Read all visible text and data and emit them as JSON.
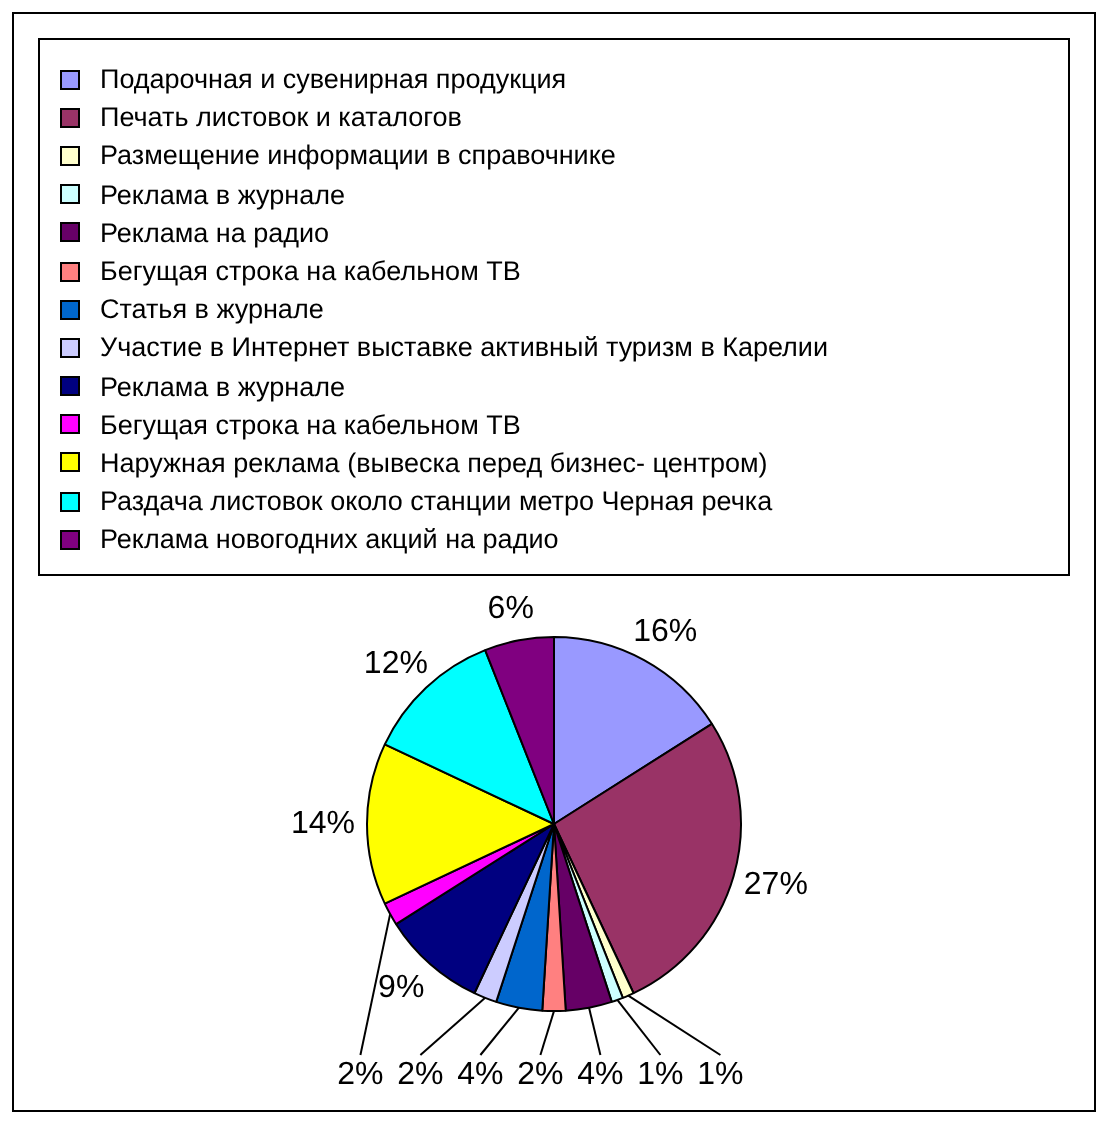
{
  "chart_data": {
    "type": "pie",
    "legend": "top",
    "categories": [
      "Подарочная и сувенирная продукция",
      "Печать листовок и каталогов",
      "Размещение информации в справочнике",
      "Реклама в журнале",
      "Реклама на радио",
      "Бегущая строка на кабельном ТВ",
      "Статья в журнале",
      "Участие в Интернет выставке активный туризм в Карелии",
      "Реклама в журнале",
      "Бегущая строка на кабельном ТВ",
      "Наружная реклама (вывеска перед бизнес- центром)",
      "Раздача листовок около станции метро Черная речка",
      "Реклама новогодних акций на радио"
    ],
    "values": [
      16,
      27,
      1,
      1,
      4,
      2,
      4,
      2,
      9,
      2,
      14,
      12,
      6
    ],
    "value_labels": [
      "16%",
      "27%",
      "1%",
      "1%",
      "4%",
      "2%",
      "4%",
      "2%",
      "9%",
      "2%",
      "14%",
      "12%",
      "6%"
    ],
    "colors": [
      "#9999ff",
      "#993366",
      "#ffffcc",
      "#ccffff",
      "#660066",
      "#ff8080",
      "#0066cc",
      "#ccccff",
      "#000080",
      "#ff00ff",
      "#ffff00",
      "#00ffff",
      "#800080"
    ]
  }
}
